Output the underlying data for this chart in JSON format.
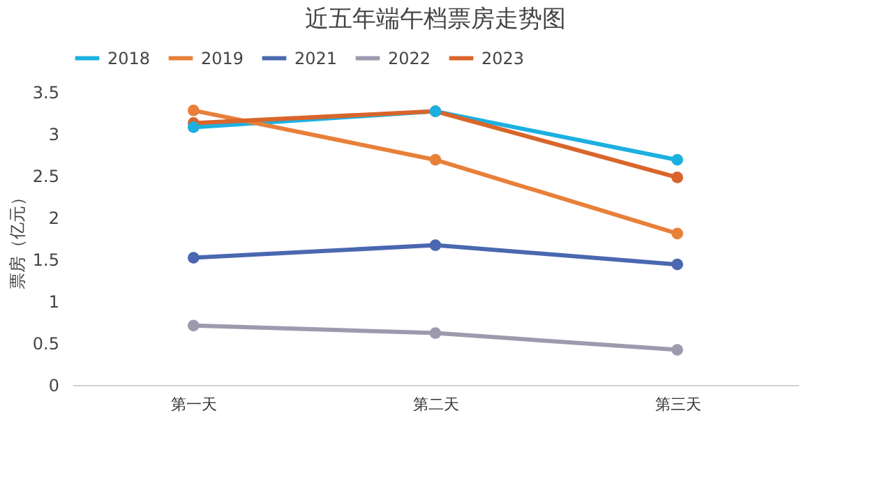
{
  "chart_data": {
    "type": "line",
    "title": "近五年端午档票房走势图",
    "ylabel": "票房（亿元）",
    "categories": [
      "第一天",
      "第二天",
      "第三天"
    ],
    "series": [
      {
        "name": "2018",
        "color": "#1cb0e0",
        "values": [
          3.08,
          3.27,
          2.69
        ]
      },
      {
        "name": "2019",
        "color": "#e8803a",
        "values": [
          3.28,
          2.69,
          1.81
        ]
      },
      {
        "name": "2021",
        "color": "#4a68b0",
        "values": [
          1.52,
          1.67,
          1.44
        ]
      },
      {
        "name": "2022",
        "color": "#9e9aae",
        "values": [
          0.71,
          0.62,
          0.42
        ]
      },
      {
        "name": "2023",
        "color": "#d9652a",
        "values": [
          3.13,
          3.27,
          2.48
        ]
      }
    ],
    "ylim": [
      0,
      3.5
    ],
    "yticks": [
      0,
      0.5,
      1,
      1.5,
      2,
      2.5,
      3,
      3.5
    ],
    "grid": false,
    "legend": "top",
    "marker": "circle",
    "line_style": "solid"
  }
}
